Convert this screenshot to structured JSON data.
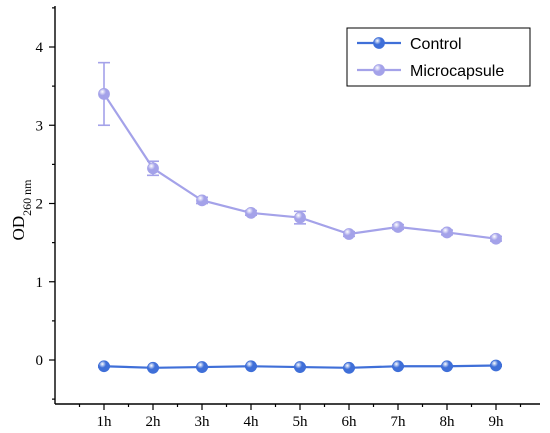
{
  "chart_data": {
    "type": "line",
    "title": "",
    "xlabel": "",
    "ylabel": "OD",
    "ylabel_subscript": "260 nm",
    "categories": [
      "1h",
      "2h",
      "3h",
      "4h",
      "5h",
      "6h",
      "7h",
      "8h",
      "9h"
    ],
    "ylim": [
      -0.5,
      4.5
    ],
    "yticks": [
      "0",
      "1",
      "2",
      "3",
      "4"
    ],
    "grid": false,
    "legend": "top-right",
    "series": [
      {
        "name": "Control",
        "color": "#3f6fd8",
        "values": [
          -0.08,
          -0.1,
          -0.09,
          -0.08,
          -0.09,
          -0.1,
          -0.08,
          -0.08,
          -0.07
        ],
        "errors": [
          0.01,
          0.01,
          0.01,
          0.01,
          0.01,
          0.01,
          0.01,
          0.01,
          0.01
        ]
      },
      {
        "name": "Microcapsule",
        "color": "#a4a2e9",
        "values": [
          3.4,
          2.45,
          2.04,
          1.88,
          1.82,
          1.61,
          1.7,
          1.63,
          1.55
        ],
        "errors": [
          0.4,
          0.09,
          0.04,
          0.03,
          0.08,
          0.03,
          0.03,
          0.03,
          0.03
        ]
      }
    ]
  }
}
